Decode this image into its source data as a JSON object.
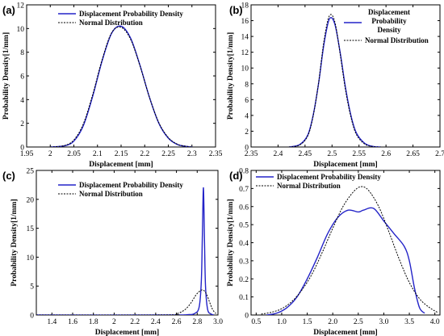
{
  "chart_data": [
    {
      "type": "line",
      "panel_label": "(a)",
      "xlabel": "Displacement [mm]",
      "ylabel": "Probability Density[1/mm]",
      "xlim": [
        1.95,
        2.35
      ],
      "ylim": [
        0,
        12
      ],
      "xticks": [
        "1.95",
        "2",
        "2.05",
        "2.1",
        "2.15",
        "2.2",
        "2.25",
        "2.3",
        "2.35"
      ],
      "yticks": [
        "0",
        "2",
        "4",
        "6",
        "8",
        "10",
        "12"
      ],
      "legend_position": "top",
      "series": [
        {
          "name": "Displacement Probability Density",
          "style": "solid",
          "color": "#2323c8",
          "x": [
            2.0,
            2.03,
            2.05,
            2.07,
            2.09,
            2.11,
            2.13,
            2.15,
            2.17,
            2.19,
            2.21,
            2.23,
            2.25,
            2.27,
            2.29,
            2.3
          ],
          "y": [
            0.0,
            0.1,
            0.5,
            1.8,
            4.3,
            7.3,
            9.6,
            10.2,
            9.2,
            6.9,
            4.2,
            2.0,
            0.75,
            0.2,
            0.04,
            0.0
          ]
        },
        {
          "name": "Normal Distribution",
          "style": "dotted",
          "color": "#000000",
          "x": [
            2.0,
            2.03,
            2.05,
            2.07,
            2.09,
            2.11,
            2.13,
            2.15,
            2.17,
            2.19,
            2.21,
            2.23,
            2.25,
            2.27,
            2.29,
            2.3
          ],
          "y": [
            0.0,
            0.12,
            0.6,
            1.95,
            4.45,
            7.4,
            9.65,
            10.1,
            9.1,
            6.85,
            4.2,
            2.05,
            0.8,
            0.22,
            0.05,
            0.0
          ]
        }
      ]
    },
    {
      "type": "line",
      "panel_label": "(b)",
      "xlabel": "Displacement [mm]",
      "ylabel": "Probability Density[1/mm]",
      "xlim": [
        2.35,
        2.7
      ],
      "ylim": [
        0,
        18
      ],
      "xticks": [
        "2.35",
        "2.4",
        "2.45",
        "2.5",
        "2.55",
        "2.6",
        "2.65",
        "2.7"
      ],
      "yticks": [
        "0",
        "2",
        "4",
        "6",
        "8",
        "10",
        "12",
        "14",
        "16",
        "18"
      ],
      "legend_position": "top-right",
      "series": [
        {
          "name": "Displacement Probability Density",
          "style": "solid",
          "color": "#2323c8",
          "x": [
            2.42,
            2.44,
            2.455,
            2.465,
            2.475,
            2.485,
            2.495,
            2.505,
            2.515,
            2.525,
            2.535,
            2.545,
            2.56,
            2.575,
            2.59
          ],
          "y": [
            0.0,
            0.3,
            1.5,
            4.0,
            8.0,
            13.0,
            16.2,
            15.6,
            12.0,
            7.5,
            4.0,
            1.8,
            0.5,
            0.08,
            0.0
          ]
        },
        {
          "name": "Normal Distribution",
          "style": "dotted",
          "color": "#000000",
          "x": [
            2.42,
            2.44,
            2.455,
            2.465,
            2.475,
            2.485,
            2.495,
            2.505,
            2.515,
            2.525,
            2.535,
            2.545,
            2.56,
            2.575,
            2.59
          ],
          "y": [
            0.0,
            0.25,
            1.4,
            3.9,
            8.1,
            13.4,
            16.6,
            15.9,
            11.8,
            7.2,
            3.8,
            1.6,
            0.4,
            0.06,
            0.0
          ]
        }
      ]
    },
    {
      "type": "line",
      "panel_label": "(c)",
      "xlabel": "Displacement [mm]",
      "ylabel": "Probability Density[1/mm]",
      "xlim": [
        1.25,
        3.0
      ],
      "ylim": [
        0,
        25
      ],
      "xticks": [
        "1.4",
        "1.6",
        "1.8",
        "2",
        "2.2",
        "2.4",
        "2.6",
        "2.8",
        "3.0"
      ],
      "xtick_values": [
        1.4,
        1.6,
        1.8,
        2.0,
        2.2,
        2.4,
        2.6,
        2.8,
        3.0
      ],
      "yticks": [
        "0",
        "5",
        "10",
        "15",
        "20",
        "25"
      ],
      "legend_position": "top",
      "series": [
        {
          "name": "Displacement Probability Density",
          "style": "solid",
          "color": "#2323c8",
          "x": [
            1.25,
            2.5,
            2.7,
            2.78,
            2.82,
            2.84,
            2.85,
            2.86,
            2.87,
            2.88,
            2.9,
            2.93,
            2.96
          ],
          "y": [
            0.0,
            0.0,
            0.05,
            0.3,
            1.5,
            6.0,
            14.0,
            22.0,
            13.0,
            5.0,
            1.0,
            0.2,
            0.0
          ]
        },
        {
          "name": "Normal Distribution",
          "style": "dotted",
          "color": "#000000",
          "x": [
            1.25,
            2.5,
            2.6,
            2.68,
            2.74,
            2.79,
            2.83,
            2.86,
            2.89,
            2.92,
            2.95,
            2.98
          ],
          "y": [
            0.0,
            0.02,
            0.2,
            0.9,
            2.1,
            3.5,
            4.2,
            4.3,
            3.6,
            2.2,
            0.9,
            0.25
          ]
        }
      ]
    },
    {
      "type": "line",
      "panel_label": "(d)",
      "xlabel": "Displacement [mm]",
      "ylabel": "Probability Density[1/mm]",
      "xlim": [
        0.4,
        4.1
      ],
      "ylim": [
        0,
        0.8
      ],
      "xticks": [
        "0.5",
        "1.0",
        "1.5",
        "2.0",
        "2.5",
        "3.0",
        "3.5",
        "4.0"
      ],
      "xtick_values": [
        0.5,
        1.0,
        1.5,
        2.0,
        2.5,
        3.0,
        3.5,
        4.0
      ],
      "yticks": [
        "0",
        "0.1",
        "0.2",
        "0.3",
        "0.4",
        "0.5",
        "0.6",
        "0.7",
        "0.8"
      ],
      "legend_position": "top-left",
      "series": [
        {
          "name": "Displacement Probability Density",
          "style": "solid",
          "color": "#2323c8",
          "x": [
            0.7,
            0.9,
            1.1,
            1.3,
            1.5,
            1.7,
            1.9,
            2.1,
            2.3,
            2.5,
            2.6,
            2.8,
            3.0,
            3.2,
            3.4,
            3.5,
            3.6,
            3.7,
            3.8
          ],
          "y": [
            0.0,
            0.01,
            0.04,
            0.1,
            0.2,
            0.32,
            0.45,
            0.54,
            0.58,
            0.57,
            0.58,
            0.59,
            0.52,
            0.45,
            0.38,
            0.3,
            0.15,
            0.04,
            0.01
          ]
        },
        {
          "name": "Normal Distribution",
          "style": "dotted",
          "color": "#000000",
          "x": [
            0.6,
            0.8,
            1.0,
            1.2,
            1.4,
            1.6,
            1.8,
            2.0,
            2.2,
            2.4,
            2.55,
            2.7,
            2.9,
            3.1,
            3.3,
            3.5,
            3.7,
            3.9,
            4.05
          ],
          "y": [
            0.005,
            0.015,
            0.035,
            0.075,
            0.14,
            0.23,
            0.35,
            0.48,
            0.6,
            0.68,
            0.71,
            0.69,
            0.6,
            0.46,
            0.31,
            0.18,
            0.09,
            0.04,
            0.015
          ]
        }
      ]
    }
  ]
}
